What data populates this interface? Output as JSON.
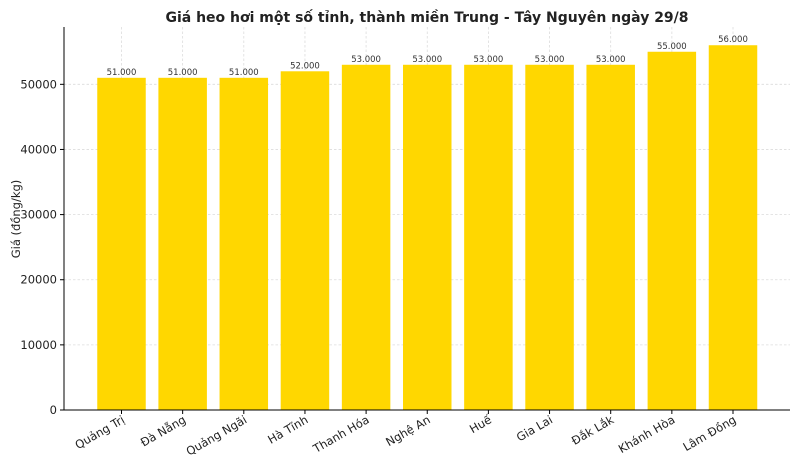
{
  "chart_data": {
    "type": "bar",
    "title": "Giá heo hơi một số tỉnh, thành miền Trung - Tây Nguyên ngày 29/8",
    "xlabel": "",
    "ylabel": "Giá (đồng/kg)",
    "categories": [
      "Quảng Trị",
      "Đà Nẵng",
      "Quảng Ngãi",
      "Hà Tĩnh",
      "Thanh Hóa",
      "Nghệ An",
      "Huế",
      "Gia Lai",
      "Đắk Lắk",
      "Khánh Hòa",
      "Lâm Đồng"
    ],
    "values": [
      51000,
      51000,
      51000,
      52000,
      53000,
      53000,
      53000,
      53000,
      53000,
      55000,
      56000
    ],
    "data_labels": [
      "51.000",
      "51.000",
      "51.000",
      "52.000",
      "53.000",
      "53.000",
      "53.000",
      "53.000",
      "53.000",
      "55.000",
      "56.000"
    ],
    "ylim": [
      0,
      58800
    ],
    "yticks": [
      0,
      10000,
      20000,
      30000,
      40000,
      50000
    ],
    "grid": true,
    "bar_color": "#FFD700"
  }
}
